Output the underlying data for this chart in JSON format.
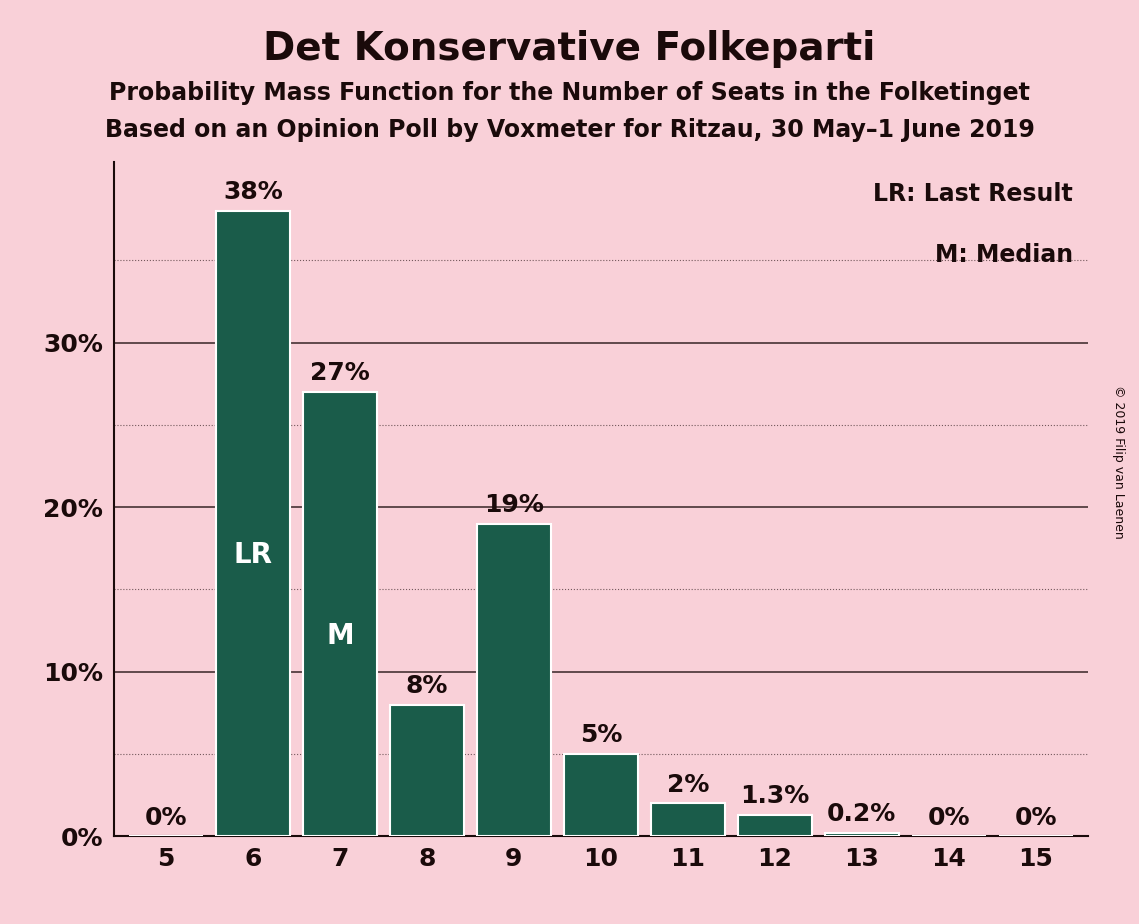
{
  "title": "Det Konservative Folkeparti",
  "subtitle1": "Probability Mass Function for the Number of Seats in the Folketinget",
  "subtitle2": "Based on an Opinion Poll by Voxmeter for Ritzau, 30 May–1 June 2019",
  "copyright": "© 2019 Filip van Laenen",
  "seats": [
    5,
    6,
    7,
    8,
    9,
    10,
    11,
    12,
    13,
    14,
    15
  ],
  "probabilities": [
    0.0,
    38.0,
    27.0,
    8.0,
    19.0,
    5.0,
    2.0,
    1.3,
    0.2,
    0.0,
    0.0
  ],
  "bar_color": "#1a5c4a",
  "background_color": "#f9d0d8",
  "text_color": "#1a0a0a",
  "bar_text_color": "#ffffff",
  "label_color": "#1a0a0a",
  "lr_seat": 6,
  "median_seat": 7,
  "lr_label": "LR",
  "median_label": "M",
  "legend_lr": "LR: Last Result",
  "legend_m": "M: Median",
  "yticks_major": [
    0,
    10,
    20,
    30
  ],
  "yticks_minor": [
    5,
    15,
    25,
    35
  ],
  "ylim": [
    0,
    41
  ],
  "grid_color": "#1a0a0a",
  "title_fontsize": 28,
  "subtitle_fontsize": 17,
  "tick_fontsize": 18,
  "bar_label_fontsize": 18,
  "bar_inner_fontsize": 20,
  "legend_fontsize": 17
}
